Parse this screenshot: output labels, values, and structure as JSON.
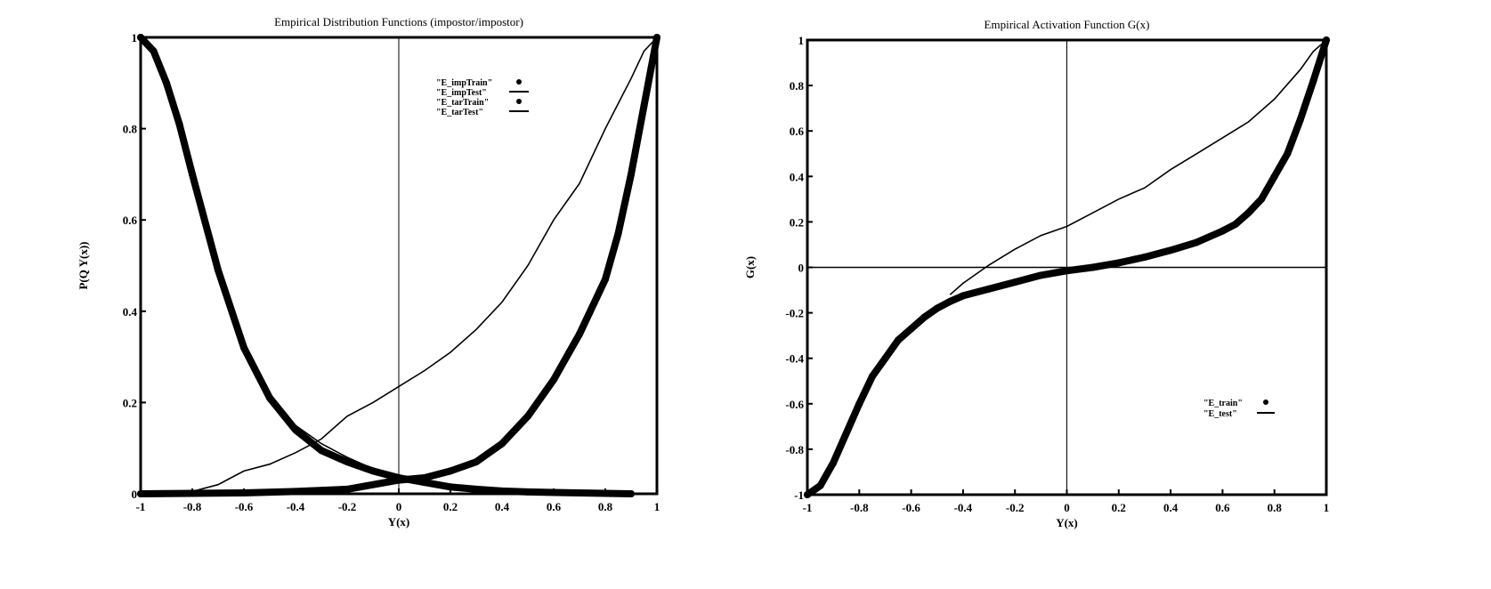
{
  "chart_data": [
    {
      "type": "line",
      "title": "Empirical Distribution Functions (impostor/impostor)",
      "xlabel": "Y(x)",
      "ylabel": "P(Q Y(x))",
      "xlim": [
        -1,
        1
      ],
      "ylim": [
        0,
        1
      ],
      "x_ticks": [
        "-1",
        "-0.8",
        "-0.6",
        "-0.4",
        "-0.2",
        "0",
        "0.2",
        "0.4",
        "0.6",
        "0.8",
        "1"
      ],
      "y_ticks": [
        "0",
        "0.2",
        "0.4",
        "0.6",
        "0.8",
        "1"
      ],
      "legend_position": "top-right",
      "series": [
        {
          "name": "\"E_impTrain\"",
          "style": "markers",
          "x": [
            -1.0,
            -0.95,
            -0.9,
            -0.85,
            -0.8,
            -0.7,
            -0.6,
            -0.5,
            -0.4,
            -0.3,
            -0.2,
            -0.1,
            0.0,
            0.1,
            0.2,
            0.3,
            0.4,
            0.5,
            0.6,
            0.7,
            0.8,
            0.9
          ],
          "y": [
            1.0,
            0.97,
            0.9,
            0.81,
            0.7,
            0.49,
            0.32,
            0.21,
            0.14,
            0.095,
            0.07,
            0.05,
            0.035,
            0.025,
            0.015,
            0.01,
            0.006,
            0.004,
            0.003,
            0.002,
            0.001,
            0.0
          ]
        },
        {
          "name": "\"E_impTest\"",
          "style": "line",
          "x": [
            -1.0,
            -0.95,
            -0.9,
            -0.85,
            -0.8,
            -0.7,
            -0.6,
            -0.5,
            -0.4,
            -0.3,
            -0.2,
            -0.1,
            0.0,
            0.1,
            0.2,
            0.3,
            0.4,
            0.5,
            0.6
          ],
          "y": [
            1.0,
            0.97,
            0.91,
            0.82,
            0.71,
            0.5,
            0.33,
            0.22,
            0.15,
            0.11,
            0.08,
            0.055,
            0.04,
            0.028,
            0.018,
            0.01,
            0.006,
            0.003,
            0.0
          ]
        },
        {
          "name": "\"E_tarTrain\"",
          "style": "markers",
          "x": [
            -1.0,
            -0.8,
            -0.6,
            -0.4,
            -0.2,
            0.0,
            0.1,
            0.2,
            0.3,
            0.4,
            0.5,
            0.6,
            0.7,
            0.8,
            0.85,
            0.9,
            0.95,
            1.0
          ],
          "y": [
            0.0,
            0.001,
            0.002,
            0.005,
            0.01,
            0.03,
            0.035,
            0.05,
            0.07,
            0.11,
            0.17,
            0.25,
            0.35,
            0.47,
            0.57,
            0.7,
            0.85,
            1.0
          ]
        },
        {
          "name": "\"E_tarTest\"",
          "style": "line",
          "x": [
            -0.85,
            -0.8,
            -0.7,
            -0.6,
            -0.5,
            -0.4,
            -0.3,
            -0.2,
            -0.1,
            0.0,
            0.1,
            0.2,
            0.3,
            0.4,
            0.5,
            0.6,
            0.7,
            0.8,
            0.9,
            0.95,
            1.0
          ],
          "y": [
            0.0,
            0.005,
            0.02,
            0.05,
            0.065,
            0.09,
            0.12,
            0.17,
            0.2,
            0.235,
            0.27,
            0.31,
            0.36,
            0.42,
            0.5,
            0.6,
            0.68,
            0.8,
            0.91,
            0.97,
            1.0
          ]
        }
      ]
    },
    {
      "type": "line",
      "title": "Empirical Activation Function G(x)",
      "xlabel": "Y(x)",
      "ylabel": "G(x)",
      "xlim": [
        -1,
        1
      ],
      "ylim": [
        -1,
        1
      ],
      "x_ticks": [
        "-1",
        "-0.8",
        "-0.6",
        "-0.4",
        "-0.2",
        "0",
        "0.2",
        "0.4",
        "0.6",
        "0.8",
        "1"
      ],
      "y_ticks": [
        "-1",
        "-0.8",
        "-0.6",
        "-0.4",
        "-0.2",
        "0",
        "0.2",
        "0.4",
        "0.6",
        "0.8",
        "1"
      ],
      "legend_position": "bottom-right",
      "series": [
        {
          "name": "\"E_train\"",
          "style": "markers",
          "x": [
            -1.0,
            -0.95,
            -0.9,
            -0.85,
            -0.8,
            -0.75,
            -0.7,
            -0.65,
            -0.6,
            -0.55,
            -0.5,
            -0.45,
            -0.4,
            -0.3,
            -0.2,
            -0.1,
            0.0,
            0.1,
            0.2,
            0.3,
            0.4,
            0.5,
            0.6,
            0.65,
            0.7,
            0.75,
            0.8,
            0.85,
            0.9,
            0.95,
            1.0
          ],
          "y": [
            -1.0,
            -0.96,
            -0.86,
            -0.73,
            -0.6,
            -0.48,
            -0.4,
            -0.32,
            -0.27,
            -0.22,
            -0.18,
            -0.15,
            -0.125,
            -0.095,
            -0.065,
            -0.035,
            -0.015,
            0.0,
            0.02,
            0.045,
            0.075,
            0.11,
            0.16,
            0.19,
            0.24,
            0.3,
            0.4,
            0.5,
            0.65,
            0.82,
            1.0
          ]
        },
        {
          "name": "\"E_test\"",
          "style": "line",
          "x": [
            -0.45,
            -0.4,
            -0.3,
            -0.2,
            -0.1,
            0.0,
            0.1,
            0.2,
            0.3,
            0.4,
            0.5,
            0.6,
            0.7,
            0.8,
            0.9,
            0.95,
            1.0
          ],
          "y": [
            -0.12,
            -0.07,
            0.01,
            0.08,
            0.14,
            0.18,
            0.24,
            0.3,
            0.35,
            0.43,
            0.5,
            0.57,
            0.64,
            0.74,
            0.87,
            0.95,
            1.0
          ]
        }
      ]
    }
  ]
}
